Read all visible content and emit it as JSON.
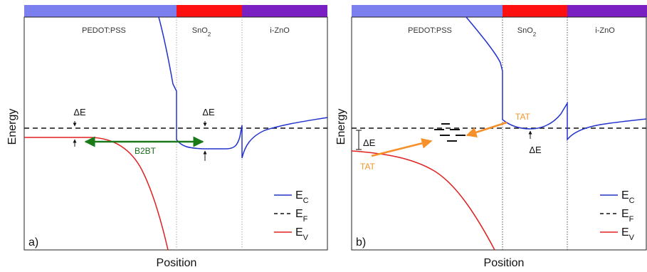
{
  "colors": {
    "pedot": "#7b80ee",
    "sno2": "#ff1010",
    "izno": "#7a1fc2",
    "ec": "#2233cc",
    "ev": "#e02020",
    "b2bt": "#1a7a1a",
    "tat": "#f5902a"
  },
  "axes": {
    "ylabel": "Energy",
    "xlabel": "Position"
  },
  "layers": {
    "pedot": "PEDOT:PSS",
    "sno2_base": "SnO",
    "sno2_sub": "2",
    "izno": "i-ZnO"
  },
  "legend": {
    "ec_base": "E",
    "ec_sub": "C",
    "ef_base": "E",
    "ef_sub": "F",
    "ev_base": "E",
    "ev_sub": "V"
  },
  "panel_a": {
    "letter": "a)",
    "delta_e_1": "ΔE",
    "delta_e_2": "ΔE",
    "b2bt": "B2BT"
  },
  "panel_b": {
    "letter": "b)",
    "delta_e_1": "ΔE",
    "delta_e_2": "ΔE",
    "tat_1": "TAT",
    "tat_2": "TAT"
  }
}
